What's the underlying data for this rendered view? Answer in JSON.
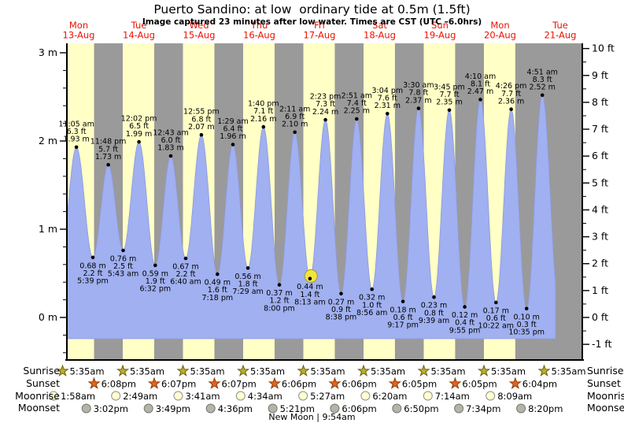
{
  "title": "Puerto Sandino: at low  ordinary tide at 0.5m (1.5ft)",
  "subtitle": "Image captured 23 minutes after low water. Times are CST (UTC –6.0hrs)",
  "colors": {
    "day_band": "#ffffc6",
    "night_band": "#9a9a9a",
    "tide_fill": "#a0b0f0",
    "tide_edge": "#8f99e0",
    "day_label_red": "#ee1100",
    "axis_black": "#000000",
    "current_marker_fill": "#f2e53e",
    "current_marker_stroke": "#a89a20",
    "sunrise_star_fill": "#bcae2c",
    "sunrise_star_stroke": "#6a6010",
    "sunset_star_fill": "#e0661e",
    "sunset_star_stroke": "#8a3a08",
    "moonrise_circle_fill": "#ffffd0",
    "moonrise_circle_stroke": "#909090",
    "moonset_circle_fill": "#b4b4aa",
    "moonset_circle_stroke": "#787870"
  },
  "chart_data": {
    "type": "area",
    "title": "Puerto Sandino: at low  ordinary tide at 0.5m (1.5ft)",
    "subtitle": "Image captured 23 minutes after low water. Times are CST (UTC –6.0hrs)",
    "x_axis_days": [
      {
        "name": "Mon",
        "date": "13-Aug"
      },
      {
        "name": "Tue",
        "date": "14-Aug"
      },
      {
        "name": "Wed",
        "date": "15-Aug"
      },
      {
        "name": "Thu",
        "date": "16-Aug"
      },
      {
        "name": "Fri",
        "date": "17-Aug"
      },
      {
        "name": "Sat",
        "date": "18-Aug"
      },
      {
        "name": "Sun",
        "date": "19-Aug"
      },
      {
        "name": "Mon",
        "date": "20-Aug"
      },
      {
        "name": "Tue",
        "date": "21-Aug"
      }
    ],
    "y_axis_left": {
      "unit": "m",
      "min": 0,
      "max": 3,
      "major_ticks": [
        "0 m",
        "1 m",
        "2 m",
        "3 m"
      ],
      "minor_step": 0.2
    },
    "y_axis_right": {
      "unit": "ft",
      "min": -1,
      "max": 10,
      "major_ticks": [
        "-1 ft",
        "0 ft",
        "1 ft",
        "2 ft",
        "3 ft",
        "4 ft",
        "5 ft",
        "6 ft",
        "7 ft",
        "8 ft",
        "9 ft",
        "10 ft"
      ],
      "minor_step": 0.5
    },
    "extremes": [
      {
        "day": 0,
        "time": "11:05 am",
        "type": "high",
        "m": 1.93,
        "m_label": "1.93 m",
        "ft_label": "6.3 ft"
      },
      {
        "day": 0,
        "time": "5:39 pm",
        "type": "low",
        "m": 0.68,
        "m_label": "0.68 m",
        "ft_label": "2.2 ft"
      },
      {
        "day": 0,
        "time": "11:48 pm",
        "type": "high",
        "m": 1.73,
        "m_label": "1.73 m",
        "ft_label": "5.7 ft"
      },
      {
        "day": 1,
        "time": "5:43 am",
        "type": "low",
        "m": 0.76,
        "m_label": "0.76 m",
        "ft_label": "2.5 ft"
      },
      {
        "day": 1,
        "time": "12:02 pm",
        "type": "high",
        "m": 1.99,
        "m_label": "1.99 m",
        "ft_label": "6.5 ft"
      },
      {
        "day": 1,
        "time": "6:32 pm",
        "type": "low",
        "m": 0.59,
        "m_label": "0.59 m",
        "ft_label": "1.9 ft"
      },
      {
        "day": 2,
        "time": "12:43 am",
        "type": "high",
        "m": 1.83,
        "m_label": "1.83 m",
        "ft_label": "6.0 ft"
      },
      {
        "day": 2,
        "time": "6:40 am",
        "type": "low",
        "m": 0.67,
        "m_label": "0.67 m",
        "ft_label": "2.2 ft"
      },
      {
        "day": 2,
        "time": "12:55 pm",
        "type": "high",
        "m": 2.07,
        "m_label": "2.07 m",
        "ft_label": "6.8 ft"
      },
      {
        "day": 2,
        "time": "7:18 pm",
        "type": "low",
        "m": 0.49,
        "m_label": "0.49 m",
        "ft_label": "1.6 ft"
      },
      {
        "day": 3,
        "time": "1:29 am",
        "type": "high",
        "m": 1.96,
        "m_label": "1.96 m",
        "ft_label": "6.4 ft"
      },
      {
        "day": 3,
        "time": "7:29 am",
        "type": "low",
        "m": 0.56,
        "m_label": "0.56 m",
        "ft_label": "1.8 ft"
      },
      {
        "day": 3,
        "time": "1:40 pm",
        "type": "high",
        "m": 2.16,
        "m_label": "2.16 m",
        "ft_label": "7.1 ft"
      },
      {
        "day": 3,
        "time": "8:00 pm",
        "type": "low",
        "m": 0.37,
        "m_label": "0.37 m",
        "ft_label": "1.2 ft"
      },
      {
        "day": 4,
        "time": "2:11 am",
        "type": "high",
        "m": 2.1,
        "m_label": "2.10 m",
        "ft_label": "6.9 ft"
      },
      {
        "day": 4,
        "time": "8:13 am",
        "type": "low",
        "m": 0.44,
        "m_label": "0.44 m",
        "ft_label": "1.4 ft"
      },
      {
        "day": 4,
        "time": "2:23 pm",
        "type": "high",
        "m": 2.24,
        "m_label": "2.24 m",
        "ft_label": "7.3 ft"
      },
      {
        "day": 4,
        "time": "8:38 pm",
        "type": "low",
        "m": 0.27,
        "m_label": "0.27 m",
        "ft_label": "0.9 ft"
      },
      {
        "day": 5,
        "time": "2:51 am",
        "type": "high",
        "m": 2.25,
        "m_label": "2.25 m",
        "ft_label": "7.4 ft"
      },
      {
        "day": 5,
        "time": "8:56 am",
        "type": "low",
        "m": 0.32,
        "m_label": "0.32 m",
        "ft_label": "1.0 ft"
      },
      {
        "day": 5,
        "time": "3:04 pm",
        "type": "high",
        "m": 2.31,
        "m_label": "2.31 m",
        "ft_label": "7.6 ft"
      },
      {
        "day": 5,
        "time": "9:17 pm",
        "type": "low",
        "m": 0.18,
        "m_label": "0.18 m",
        "ft_label": "0.6 ft"
      },
      {
        "day": 6,
        "time": "3:30 am",
        "type": "high",
        "m": 2.37,
        "m_label": "2.37 m",
        "ft_label": "7.8 ft"
      },
      {
        "day": 6,
        "time": "9:39 am",
        "type": "low",
        "m": 0.23,
        "m_label": "0.23 m",
        "ft_label": "0.8 ft"
      },
      {
        "day": 6,
        "time": "3:45 pm",
        "type": "high",
        "m": 2.35,
        "m_label": "2.35 m",
        "ft_label": "7.7 ft"
      },
      {
        "day": 6,
        "time": "9:55 pm",
        "type": "low",
        "m": 0.12,
        "m_label": "0.12 m",
        "ft_label": "0.4 ft"
      },
      {
        "day": 7,
        "time": "4:10 am",
        "type": "high",
        "m": 2.47,
        "m_label": "2.47 m",
        "ft_label": "8.1 ft"
      },
      {
        "day": 7,
        "time": "10:22 am",
        "type": "low",
        "m": 0.17,
        "m_label": "0.17 m",
        "ft_label": "0.6 ft"
      },
      {
        "day": 7,
        "time": "4:26 pm",
        "type": "high",
        "m": 2.36,
        "m_label": "2.36 m",
        "ft_label": "7.7 ft"
      },
      {
        "day": 7,
        "time": "10:35 pm",
        "type": "low",
        "m": 0.1,
        "m_label": "0.10 m",
        "ft_label": "0.3 ft"
      },
      {
        "day": 8,
        "time": "4:51 am",
        "type": "high",
        "m": 2.52,
        "m_label": "2.52 m",
        "ft_label": "8.3 ft"
      }
    ],
    "current_marker": {
      "day": 4,
      "time": "8:36 am",
      "m": 0.47
    }
  },
  "almanac": {
    "rows": [
      {
        "label": "Sunrise",
        "icon": "sunrise-star",
        "entries": [
          {
            "day": 0,
            "time": "5:35am"
          },
          {
            "day": 1,
            "time": "5:35am"
          },
          {
            "day": 2,
            "time": "5:35am"
          },
          {
            "day": 3,
            "time": "5:35am"
          },
          {
            "day": 4,
            "time": "5:35am"
          },
          {
            "day": 5,
            "time": "5:35am"
          },
          {
            "day": 6,
            "time": "5:35am"
          },
          {
            "day": 7,
            "time": "5:35am"
          },
          {
            "day": 8,
            "time": "5:35am"
          }
        ]
      },
      {
        "label": "Sunset",
        "icon": "sunset-star",
        "entries": [
          {
            "day": 0,
            "time": "6:08pm"
          },
          {
            "day": 1,
            "time": "6:07pm"
          },
          {
            "day": 2,
            "time": "6:07pm"
          },
          {
            "day": 3,
            "time": "6:06pm"
          },
          {
            "day": 4,
            "time": "6:06pm"
          },
          {
            "day": 5,
            "time": "6:05pm"
          },
          {
            "day": 6,
            "time": "6:05pm"
          },
          {
            "day": 7,
            "time": "6:04pm"
          }
        ]
      },
      {
        "label": "Moonrise",
        "icon": "moonrise-circle",
        "entries": [
          {
            "day": 0,
            "time": "1:58am"
          },
          {
            "day": 1,
            "time": "2:49am"
          },
          {
            "day": 2,
            "time": "3:41am"
          },
          {
            "day": 3,
            "time": "4:34am"
          },
          {
            "day": 4,
            "time": "5:27am"
          },
          {
            "day": 5,
            "time": "6:20am"
          },
          {
            "day": 6,
            "time": "7:14am"
          },
          {
            "day": 7,
            "time": "8:09am"
          }
        ]
      },
      {
        "label": "Moonset",
        "icon": "moonset-circle",
        "entries": [
          {
            "day": 0,
            "time": "3:02pm"
          },
          {
            "day": 1,
            "time": "3:49pm"
          },
          {
            "day": 2,
            "time": "4:36pm"
          },
          {
            "day": 3,
            "time": "5:21pm"
          },
          {
            "day": 4,
            "time": "6:06pm"
          },
          {
            "day": 5,
            "time": "6:50pm"
          },
          {
            "day": 6,
            "time": "7:34pm"
          },
          {
            "day": 7,
            "time": "8:20pm"
          }
        ]
      }
    ],
    "new_moon": "New Moon | 9:54am"
  }
}
